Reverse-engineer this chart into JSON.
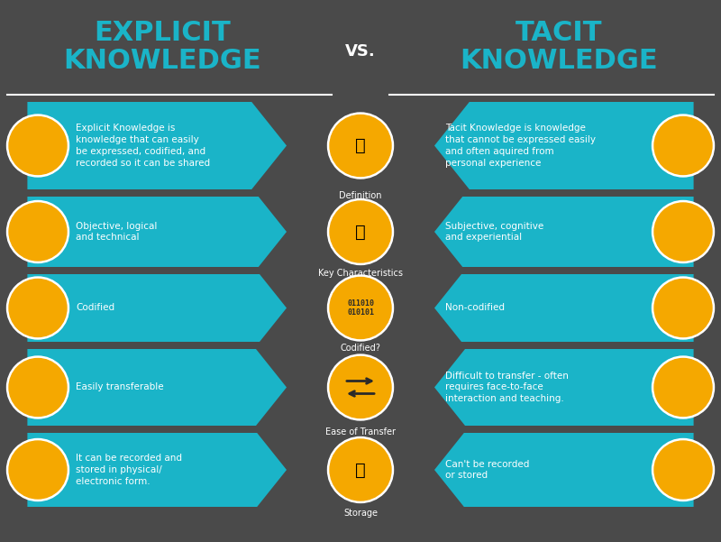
{
  "bg_color": "#4a4a4a",
  "teal": "#1ab4c8",
  "gold": "#f5a800",
  "white": "#ffffff",
  "title_left": "EXPLICIT\nKNOWLEDGE",
  "title_right": "TACIT\nKNOWLEDGE",
  "vs_text": "VS.",
  "rows": [
    {
      "label": "Definition",
      "left_text": "Explicit Knowledge is\nknowledge that can easily\nbe expressed, codified, and\nrecorded so it can be shared",
      "right_text": "Tacit Knowledge is knowledge\nthat cannot be expressed easily\nand often aquired from\npersonal experience"
    },
    {
      "label": "Key Characteristics",
      "left_text": "Objective, logical\nand technical",
      "right_text": "Subjective, cognitive\nand experiential"
    },
    {
      "label": "Codified?",
      "left_text": "Codified",
      "right_text": "Non-codified"
    },
    {
      "label": "Ease of Transfer",
      "left_text": "Easily transferable",
      "right_text": "Difficult to transfer - often\nrequires face-to-face\ninteraction and teaching."
    },
    {
      "label": "Storage",
      "left_text": "It can be recorded and\nstored in physical/\nelectronic form.",
      "right_text": "Can't be recorded\nor stored"
    }
  ]
}
